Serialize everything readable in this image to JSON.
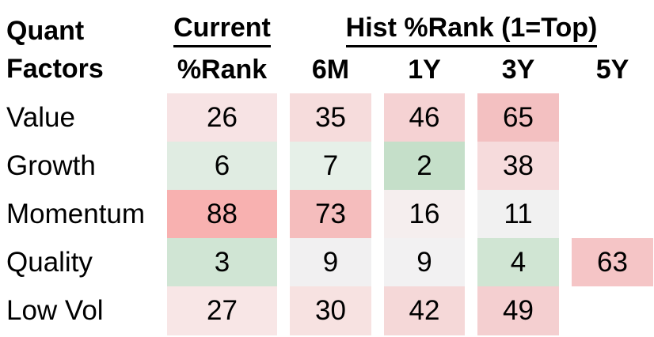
{
  "header": {
    "row_group_title_line1": "Quant",
    "row_group_title_line2": "Factors",
    "current_group": "Current",
    "current_sub": "%Rank",
    "hist_group": "Hist %Rank (1=Top)",
    "periods": [
      "6M",
      "1Y",
      "3Y",
      "5Y"
    ]
  },
  "chart_data": {
    "type": "heatmap",
    "row_header": "Quant Factors",
    "column_groups": [
      "Current",
      "Hist %Rank (1=Top)"
    ],
    "columns": [
      "Current %Rank",
      "6M",
      "1Y",
      "3Y",
      "5Y"
    ],
    "rows": [
      "Value",
      "Growth",
      "Momentum",
      "Quality",
      "Low Vol"
    ],
    "values": [
      [
        26,
        35,
        46,
        65,
        null
      ],
      [
        6,
        7,
        2,
        38,
        null
      ],
      [
        88,
        73,
        16,
        11,
        null
      ],
      [
        3,
        9,
        9,
        4,
        63
      ],
      [
        27,
        30,
        42,
        49,
        null
      ]
    ],
    "scale_note": "1=Top",
    "color_scale": "green (low/best) through white to red (high/worst)"
  },
  "cell_colors": [
    [
      "#f7e3e4",
      "#f6dcdc",
      "#f5d2d3",
      "#f3c0c1",
      ""
    ],
    [
      "#e0ece2",
      "#e6f0e8",
      "#c5dfc9",
      "#f6dbdc",
      ""
    ],
    [
      "#f8b1b0",
      "#f5bdbd",
      "#f5eeee",
      "#f1f1f1",
      ""
    ],
    [
      "#d0e5d4",
      "#f1f0f1",
      "#f2f1f2",
      "#d0e5d3",
      "#f5c5c6"
    ],
    [
      "#f8e6e6",
      "#f7e2e1",
      "#f5d8d8",
      "#f4cfd0",
      ""
    ]
  ]
}
